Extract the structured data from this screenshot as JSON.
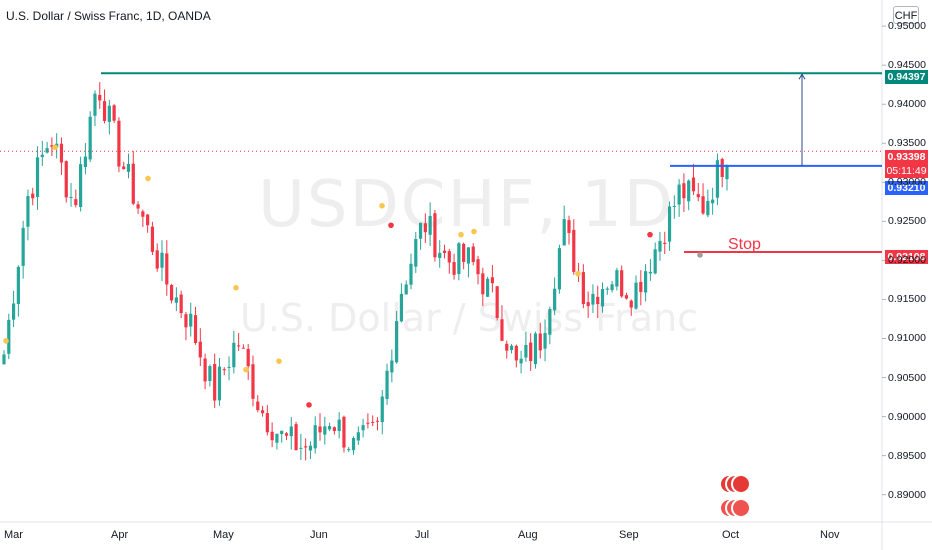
{
  "header": {
    "title": "U.S. Dollar / Swiss Franc, 1D, OANDA",
    "currency": "CHF"
  },
  "watermark": {
    "symbol": "USDCHF, 1D",
    "name": "U.S. Dollar / Swiss Franc"
  },
  "colors": {
    "up": "#26a69a",
    "down": "#f23645",
    "resistance": "#00897b",
    "entry": "#2962ff",
    "stop": "#f23645",
    "current": "#f23645"
  },
  "annotations": {
    "stop_label": "Stop",
    "resistance_price": "0.94397",
    "entry_price": "0.93210",
    "stop_price": "0.92108",
    "current_price": "0.93398",
    "countdown": "05:11:49"
  },
  "chart_data": {
    "type": "candlestick",
    "title": "U.S. Dollar / Swiss Franc, 1D, OANDA",
    "xlabel": "",
    "ylabel": "CHF",
    "ylim": [
      0.8865,
      0.9513
    ],
    "y_ticks": [
      "0.95000",
      "0.94500",
      "0.94000",
      "0.93500",
      "0.93000",
      "0.92500",
      "0.92000",
      "0.91500",
      "0.91000",
      "0.90500",
      "0.90000",
      "0.89500",
      "0.89000"
    ],
    "x_ticks": [
      "Mar",
      "Apr",
      "May",
      "Jun",
      "Jul",
      "Aug",
      "Sep",
      "Oct",
      "Nov"
    ],
    "grid": false,
    "levels": [
      {
        "price": 0.94397,
        "label": "0.94397"
      },
      {
        "price": 0.9321,
        "label": "0.93210"
      },
      {
        "price": 0.92108,
        "label": "0.92108",
        "text": "Stop"
      }
    ],
    "anchors": [
      {
        "date": "Mar",
        "close": 0.908
      },
      {
        "date": "Mar-08",
        "close": 0.928
      },
      {
        "date": "Mar-15",
        "close": 0.936
      },
      {
        "date": "Mar-22",
        "close": 0.927
      },
      {
        "date": "Mar-29",
        "close": 0.943
      },
      {
        "date": "Apr-05",
        "close": 0.933
      },
      {
        "date": "Apr-12",
        "close": 0.925
      },
      {
        "date": "Apr-19",
        "close": 0.917
      },
      {
        "date": "Apr-26",
        "close": 0.912
      },
      {
        "date": "May-03",
        "close": 0.903
      },
      {
        "date": "May-10",
        "close": 0.91
      },
      {
        "date": "May-17",
        "close": 0.901
      },
      {
        "date": "May-24",
        "close": 0.897
      },
      {
        "date": "May-31",
        "close": 0.896
      },
      {
        "date": "Jun-07",
        "close": 0.9
      },
      {
        "date": "Jun-14",
        "close": 0.896
      },
      {
        "date": "Jun-21",
        "close": 0.898
      },
      {
        "date": "Jun-28",
        "close": 0.916
      },
      {
        "date": "Jul-05",
        "close": 0.925
      },
      {
        "date": "Jul-12",
        "close": 0.92
      },
      {
        "date": "Jul-19",
        "close": 0.92
      },
      {
        "date": "Jul-26",
        "close": 0.915
      },
      {
        "date": "Aug-02",
        "close": 0.906
      },
      {
        "date": "Aug-09",
        "close": 0.91
      },
      {
        "date": "Aug-16",
        "close": 0.924
      },
      {
        "date": "Aug-23",
        "close": 0.915
      },
      {
        "date": "Aug-30",
        "close": 0.918
      },
      {
        "date": "Sep-06",
        "close": 0.916
      },
      {
        "date": "Sep-13",
        "close": 0.922
      },
      {
        "date": "Sep-20",
        "close": 0.929
      },
      {
        "date": "Sep-24",
        "close": 0.927
      },
      {
        "date": "Sep-27",
        "close": 0.934
      }
    ]
  }
}
